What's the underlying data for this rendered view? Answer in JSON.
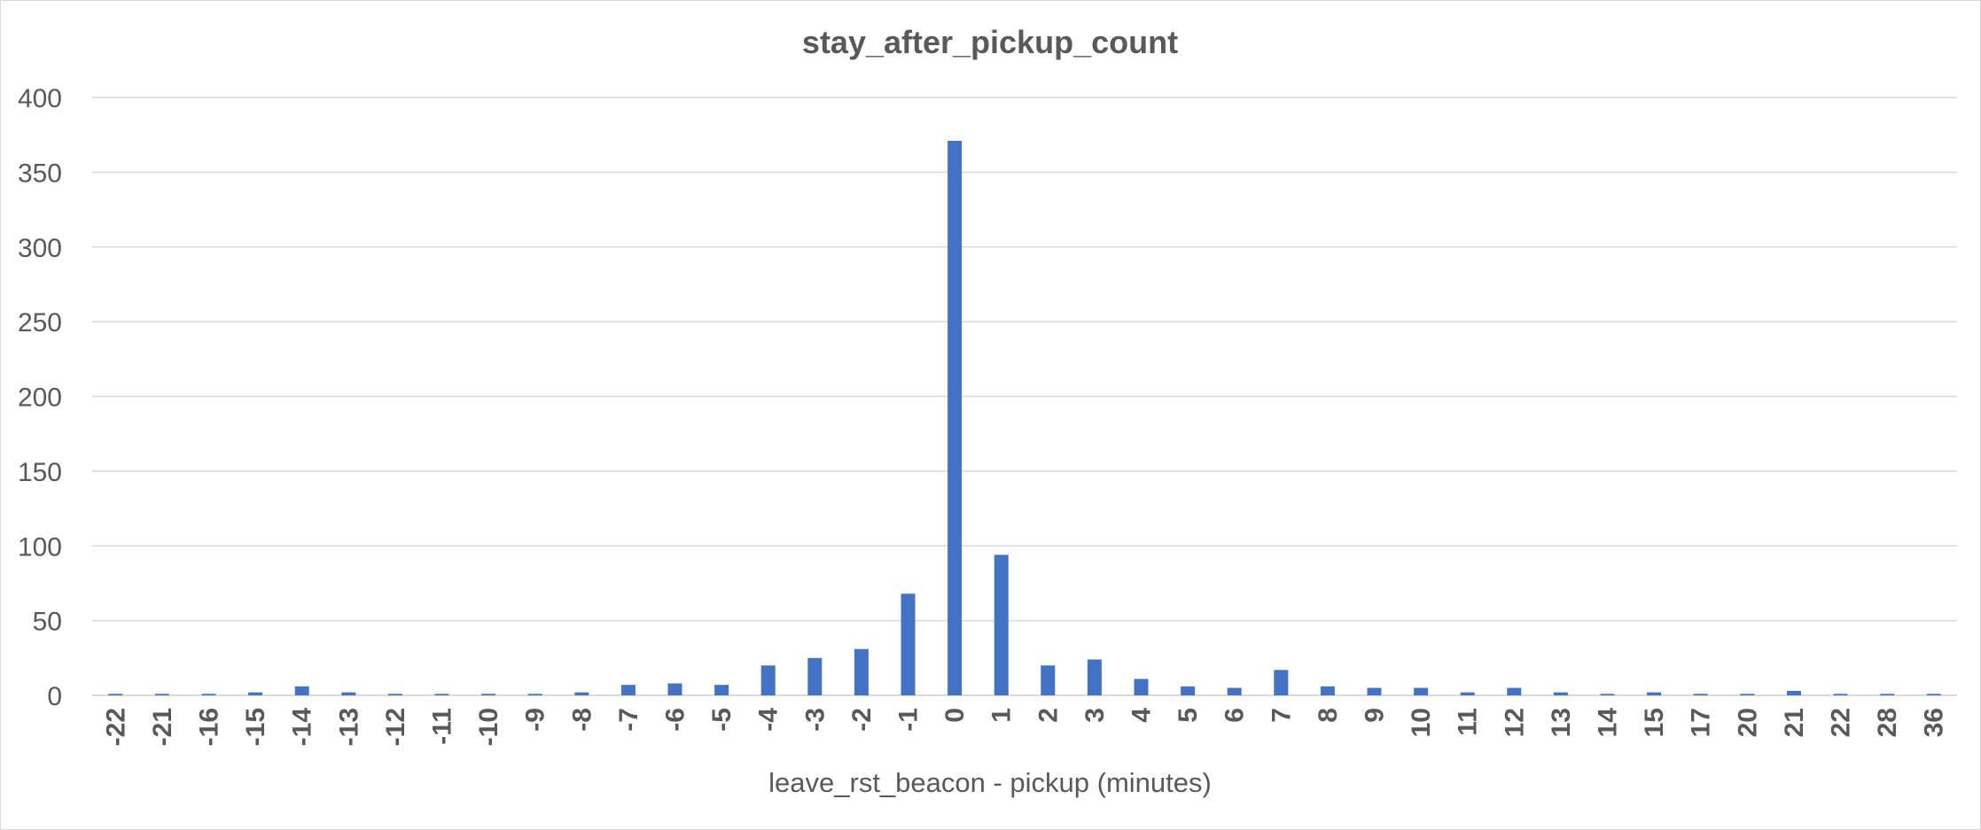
{
  "chart_data": {
    "type": "bar",
    "title": "stay_after_pickup_count",
    "xlabel": "leave_rst_beacon - pickup (minutes)",
    "ylabel": "",
    "ylim": [
      0,
      400
    ],
    "yticks": [
      0,
      50,
      100,
      150,
      200,
      250,
      300,
      350,
      400
    ],
    "grid": true,
    "legend": "none",
    "bar_color": "#4472c4",
    "categories": [
      "-22",
      "-21",
      "-16",
      "-15",
      "-14",
      "-13",
      "-12",
      "-11",
      "-10",
      "-9",
      "-8",
      "-7",
      "-6",
      "-5",
      "-4",
      "-3",
      "-2",
      "-1",
      "0",
      "1",
      "2",
      "3",
      "4",
      "5",
      "6",
      "7",
      "8",
      "9",
      "10",
      "11",
      "12",
      "13",
      "14",
      "15",
      "17",
      "20",
      "21",
      "22",
      "28",
      "36"
    ],
    "series": [
      {
        "values": [
          1,
          1,
          1,
          2,
          6,
          2,
          1,
          1,
          1,
          1,
          2,
          7,
          8,
          7,
          20,
          25,
          31,
          68,
          371,
          94,
          20,
          24,
          11,
          6,
          5,
          17,
          6,
          5,
          5,
          2,
          5,
          2,
          1,
          2,
          1,
          1,
          3,
          1,
          1,
          1
        ]
      }
    ]
  }
}
